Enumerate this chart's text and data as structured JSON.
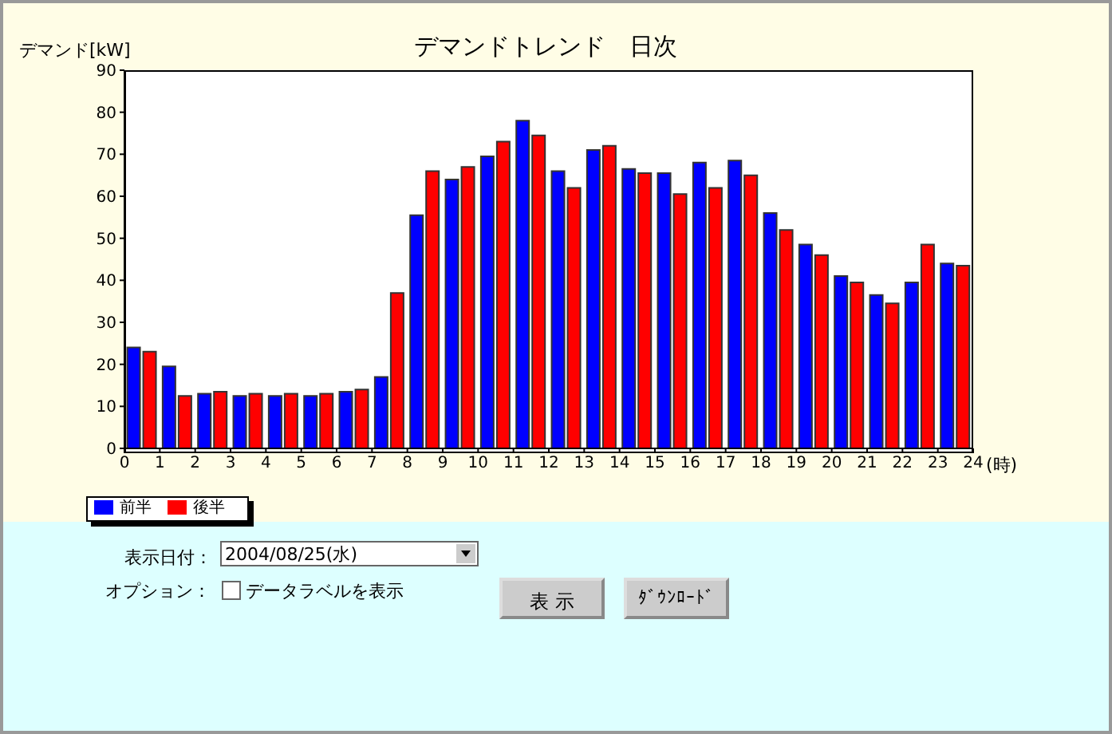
{
  "chart_data": {
    "type": "bar",
    "title": "デマンドトレンド　日次",
    "ylabel": "デマンド[kW]",
    "xlabel": "(時)",
    "x": [
      0.5,
      1.5,
      2.5,
      3.5,
      4.5,
      5.5,
      6.5,
      7.5,
      8.5,
      9.5,
      10.5,
      11.5,
      12.5,
      13.5,
      14.5,
      15.5,
      16.5,
      17.5,
      18.5,
      19.5,
      20.5,
      21.5,
      22.5,
      23.5
    ],
    "series": [
      {
        "name": "前半",
        "color": "#0000ff",
        "values": [
          24,
          19.5,
          13,
          12.5,
          12.5,
          12.5,
          13.5,
          17,
          55.5,
          64,
          69.5,
          78,
          66,
          71,
          66.5,
          65.5,
          68,
          68.5,
          56,
          48.5,
          41,
          36.5,
          39.5,
          44
        ]
      },
      {
        "name": "後半",
        "color": "#ff0000",
        "values": [
          23,
          12.5,
          13.5,
          13,
          13,
          13,
          14,
          37,
          66,
          67,
          73,
          74.5,
          62,
          72,
          65.5,
          60.5,
          62,
          65,
          52,
          46,
          39.5,
          34.5,
          48.5,
          43.5
        ]
      }
    ],
    "xlim": [
      0,
      24
    ],
    "xticks": [
      0,
      1,
      2,
      3,
      4,
      5,
      6,
      7,
      8,
      9,
      10,
      11,
      12,
      13,
      14,
      15,
      16,
      17,
      18,
      19,
      20,
      21,
      22,
      23,
      24
    ],
    "ylim": [
      0,
      90
    ],
    "yticks": [
      0,
      10,
      20,
      30,
      40,
      50,
      60,
      70,
      80,
      90
    ],
    "grid": false,
    "legend": "bottom left",
    "annotations": [
      "表示日付：",
      "2004/08/25(水)",
      "オプション：",
      "データラベルを表示",
      "表 示",
      "ﾀﾞｳﾝﾛｰﾄﾞ"
    ]
  }
}
